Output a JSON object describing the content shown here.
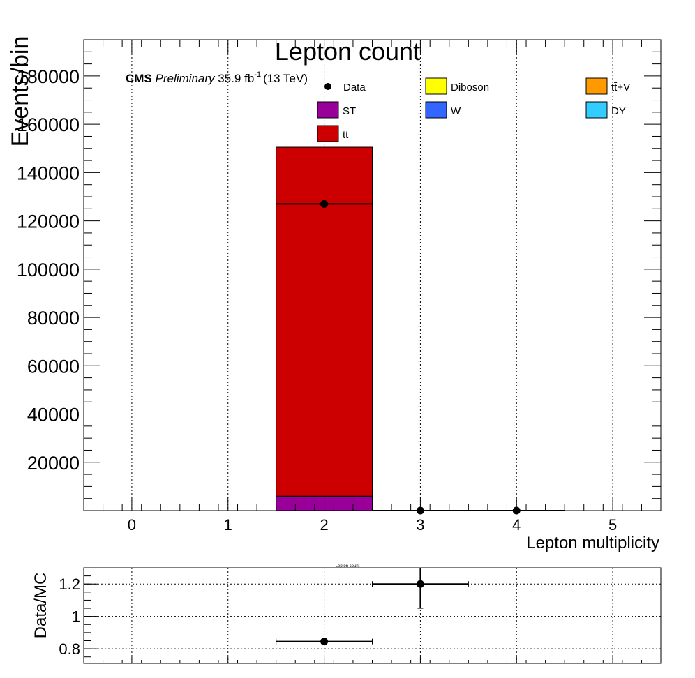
{
  "chart_data": [
    {
      "type": "bar",
      "title": "Lepton count",
      "xlabel": "Lepton multiplicity",
      "ylabel": "Events/bin",
      "xlim": [
        -0.5,
        5.5
      ],
      "ylim": [
        0,
        195000
      ],
      "x_ticks": [
        "0",
        "1",
        "2",
        "3",
        "4",
        "5"
      ],
      "y_ticks": [
        "20000",
        "40000",
        "60000",
        "80000",
        "100000",
        "120000",
        "140000",
        "160000",
        "180000"
      ],
      "grid": true,
      "legend_position": "top",
      "cms_label": "CMS",
      "preliminary_label": "Preliminary",
      "lumi_label": "35.9 fb",
      "lumi_exponent": "-1",
      "energy_label": "(13 TeV)",
      "legend": [
        {
          "name": "Data",
          "color": "#000000",
          "style": "marker"
        },
        {
          "name": "Diboson",
          "color": "#ffff00",
          "style": "box"
        },
        {
          "name": "tt̄+V",
          "color": "#ff9900",
          "style": "box"
        },
        {
          "name": "ST",
          "color": "#990099",
          "style": "box"
        },
        {
          "name": "W",
          "color": "#3366ff",
          "style": "box"
        },
        {
          "name": "DY",
          "color": "#33ccff",
          "style": "box"
        },
        {
          "name": "tt̄",
          "color": "#cc0000",
          "style": "box"
        }
      ],
      "stack_bins": [
        {
          "x_low": 1.5,
          "x_high": 2.5,
          "components": [
            {
              "name": "ST",
              "value": 6000,
              "color": "#990099"
            },
            {
              "name": "tt̄",
              "value": 144500,
              "color": "#cc0000"
            }
          ]
        }
      ],
      "data_points": [
        {
          "x": 2,
          "x_low": 1.5,
          "x_high": 2.5,
          "y": 127000
        },
        {
          "x": 3,
          "x_low": 2.5,
          "x_high": 3.5,
          "y": 0
        },
        {
          "x": 4,
          "x_low": 3.5,
          "x_high": 4.5,
          "y": 0
        }
      ]
    },
    {
      "type": "scatter",
      "title": "Lepton count",
      "ylabel": "Data/MC",
      "xlim": [
        -0.5,
        5.5
      ],
      "ylim": [
        0.71,
        1.3
      ],
      "y_ticks": [
        "0.8",
        "1",
        "1.2"
      ],
      "grid": true,
      "points": [
        {
          "x": 2,
          "y": 0.845,
          "x_low": 1.5,
          "x_high": 2.5,
          "y_err_low": 0,
          "y_err_high": 0
        },
        {
          "x": 3,
          "y": 1.2,
          "x_low": 2.5,
          "x_high": 3.5,
          "y_err_low": 0.15,
          "y_err_high": 0.1
        }
      ]
    }
  ]
}
